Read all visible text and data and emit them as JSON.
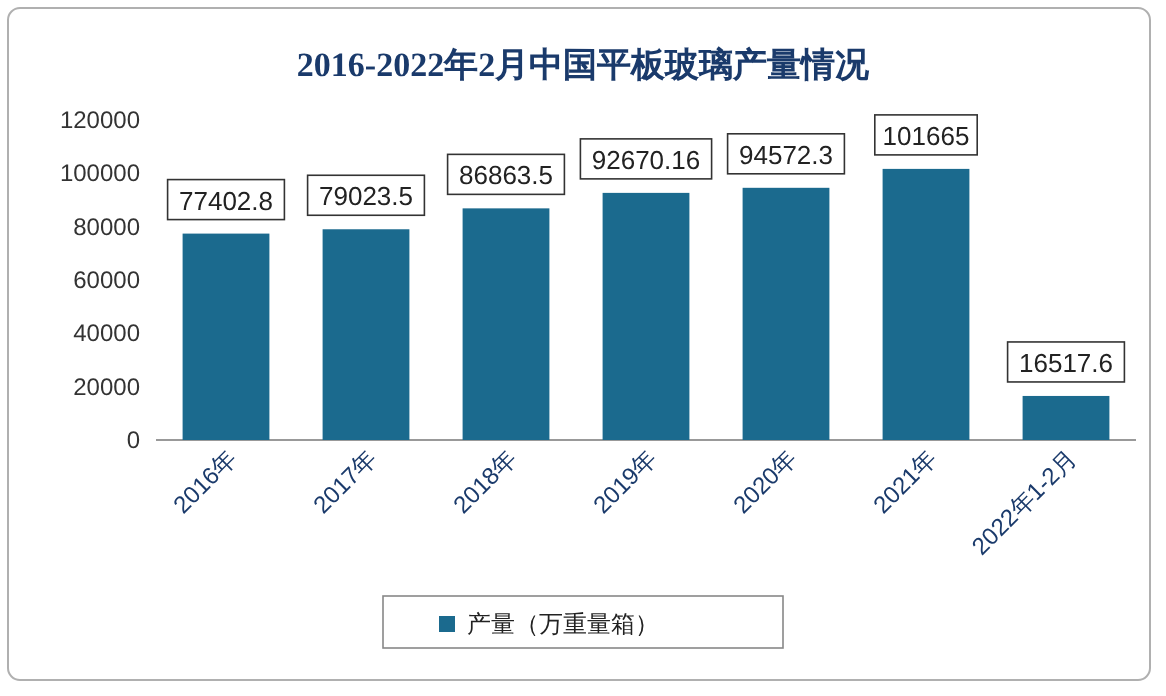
{
  "chart_data": {
    "type": "bar",
    "title": "2016-2022年2月中国平板玻璃产量情况",
    "categories": [
      "2016年",
      "2017年",
      "2018年",
      "2019年",
      "2020年",
      "2021年",
      "2022年1-2月"
    ],
    "series": [
      {
        "name": "产量（万重量箱）",
        "color": "#1b6a8e",
        "values": [
          77402.8,
          79023.5,
          86863.5,
          92670.16,
          94572.3,
          101665,
          16517.6
        ]
      }
    ],
    "ylim": [
      0,
      120000
    ],
    "yticks": [
      0,
      20000,
      40000,
      60000,
      80000,
      100000,
      120000
    ],
    "data_labels": true,
    "grid": false,
    "legend": "bottom"
  }
}
